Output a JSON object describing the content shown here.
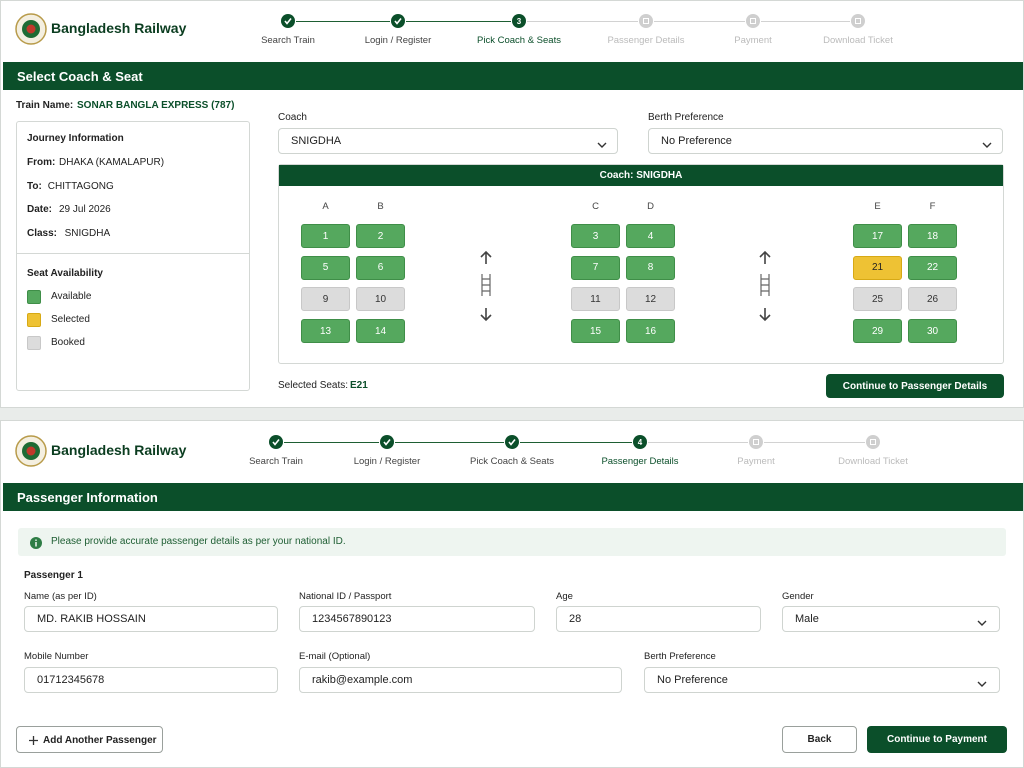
{
  "screens": [
    {
      "brand": "Bangladesh Railway",
      "steps": [
        "Search Train",
        "Login / Register",
        "Pick Coach & Seats",
        "Passenger Details",
        "Payment",
        "Download Ticket"
      ],
      "active_step": 3,
      "section_title": "Select Coach & Seat",
      "train_name_label": "Train Name:",
      "train_name": "SONAR BANGLA EXPRESS (787)",
      "journey": {
        "title": "Journey Information",
        "rows": [
          {
            "label": "From:",
            "value": "DHAKA (KAMALAPUR)"
          },
          {
            "label": "To:",
            "value": "CHITTAGONG"
          },
          {
            "label": "Date:",
            "value": "29 Jul 2026"
          },
          {
            "label": "Class:",
            "value": "SNIGDHA"
          }
        ]
      },
      "availability": {
        "title": "Seat Availability",
        "items": [
          {
            "status": "available",
            "label": "Available"
          },
          {
            "status": "selected",
            "label": "Selected"
          },
          {
            "status": "booked",
            "label": "Booked"
          }
        ]
      },
      "coach": {
        "label": "Coach",
        "value": "SNIGDHA"
      },
      "berth": {
        "label": "Berth Preference",
        "value": "No Preference"
      },
      "coach_header": "Coach: SNIGDHA",
      "seat_groups": [
        {
          "columns": [
            "A",
            "B"
          ],
          "rows": [
            [
              {
                "number": 1,
                "status": "available"
              },
              {
                "number": 2,
                "status": "available"
              }
            ],
            [
              {
                "number": 5,
                "status": "available"
              },
              {
                "number": 6,
                "status": "available"
              }
            ],
            [
              {
                "number": 9,
                "status": "booked"
              },
              {
                "number": 10,
                "status": "booked"
              }
            ],
            [
              {
                "number": 13,
                "status": "available"
              },
              {
                "number": 14,
                "status": "available"
              }
            ]
          ]
        },
        {
          "columns": [
            "C",
            "D"
          ],
          "rows": [
            [
              {
                "number": 3,
                "status": "available"
              },
              {
                "number": 4,
                "status": "available"
              }
            ],
            [
              {
                "number": 7,
                "status": "available"
              },
              {
                "number": 8,
                "status": "available"
              }
            ],
            [
              {
                "number": 11,
                "status": "booked"
              },
              {
                "number": 12,
                "status": "booked"
              }
            ],
            [
              {
                "number": 15,
                "status": "available"
              },
              {
                "number": 16,
                "status": "available"
              }
            ]
          ]
        },
        {
          "columns": [
            "E",
            "F"
          ],
          "rows": [
            [
              {
                "number": 17,
                "status": "available"
              },
              {
                "number": 18,
                "status": "available"
              }
            ],
            [
              {
                "number": 21,
                "status": "selected"
              },
              {
                "number": 22,
                "status": "available"
              }
            ],
            [
              {
                "number": 25,
                "status": "booked"
              },
              {
                "number": 26,
                "status": "booked"
              }
            ],
            [
              {
                "number": 29,
                "status": "available"
              },
              {
                "number": 30,
                "status": "available"
              }
            ]
          ]
        }
      ],
      "selected_seats_label": "Selected Seats:",
      "selected_seats": "E21",
      "continue_button": "Continue to Passenger Details"
    },
    {
      "brand": "Bangladesh Railway",
      "steps": [
        "Search Train",
        "Login / Register",
        "Pick Coach & Seats",
        "Passenger Details",
        "Payment",
        "Download Ticket"
      ],
      "active_step": 4,
      "section_title": "Passenger Information",
      "notice": "Please provide accurate passenger details as per your national ID.",
      "passenger_title": "Passenger 1",
      "field_rows": [
        [
          {
            "label": "Name (as per ID)",
            "value": "MD. RAKIB HOSSAIN"
          },
          {
            "label": "National ID / Passport",
            "value": "1234567890123"
          },
          {
            "label": "Age",
            "value": "28"
          },
          {
            "label": "Gender",
            "value": "Male",
            "dropdown": true
          }
        ],
        [
          {
            "label": "Mobile Number",
            "value": "01712345678"
          },
          {
            "label": "E-mail (Optional)",
            "value": "rakib@example.com"
          },
          {
            "label": "Berth Preference",
            "value": "No Preference",
            "dropdown": true
          }
        ]
      ],
      "add_button": "Add Another Passenger",
      "back_button": "Back",
      "continue_button": "Continue to Payment"
    }
  ]
}
